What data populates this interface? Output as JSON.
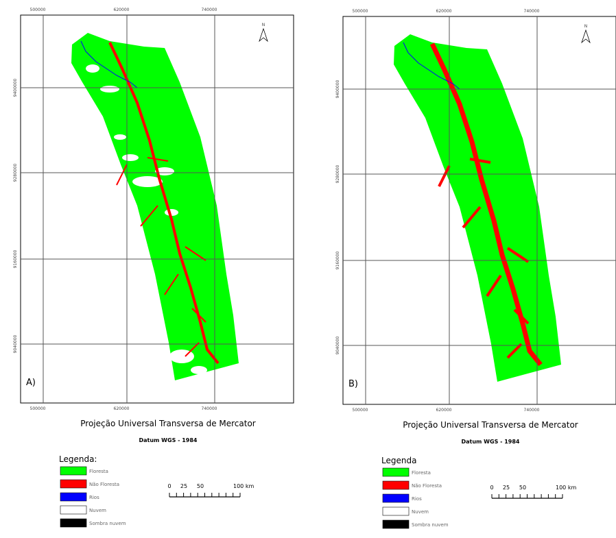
{
  "panels": [
    {
      "label": "A)",
      "north": "N",
      "x_ticks": [
        "500000",
        "620000",
        "740000"
      ],
      "y_ticks": [
        "9400000",
        "9280000",
        "9160000",
        "9040000"
      ],
      "projection": "Projeção Universal Transversa de Mercator",
      "datum": "Datum WGS - 1984",
      "legend_title": "Legenda:",
      "legend": [
        {
          "label": "Floresta",
          "color": "#00ff00"
        },
        {
          "label": "Não Floresta",
          "color": "#ff0000"
        },
        {
          "label": "Rios",
          "color": "#0000ff"
        },
        {
          "label": "Nuvem",
          "color": "#ffffff"
        },
        {
          "label": "Sombra nuvem",
          "color": "#000000"
        }
      ],
      "scale_labels": [
        "0",
        "25",
        "50",
        "100 km"
      ]
    },
    {
      "label": "B)",
      "north": "N",
      "x_ticks": [
        "500000",
        "620000",
        "740000"
      ],
      "y_ticks": [
        "9400000",
        "9280000",
        "9160000",
        "9040000"
      ],
      "projection": "Projeção Universal Transversa de Mercator",
      "datum": "Datum WGS - 1984",
      "legend_title": "Legenda",
      "legend": [
        {
          "label": "Floresta",
          "color": "#00ff00"
        },
        {
          "label": "Não Floresta",
          "color": "#ff0000"
        },
        {
          "label": "Rios",
          "color": "#0000ff"
        },
        {
          "label": "Nuvem",
          "color": "#ffffff"
        },
        {
          "label": "Sombra nuvem",
          "color": "#000000"
        }
      ],
      "scale_labels": [
        "0",
        "25",
        "50",
        "100 km"
      ]
    }
  ]
}
